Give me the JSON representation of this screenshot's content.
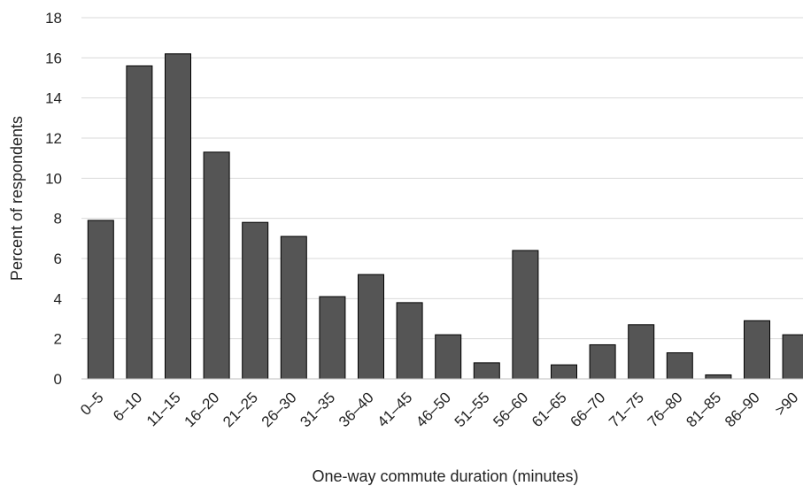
{
  "chart_data": {
    "type": "bar",
    "title": "",
    "xlabel": "One-way commute duration (minutes)",
    "ylabel": "Percent of respondents",
    "ylim": [
      0,
      18
    ],
    "yticks": [
      0,
      2,
      4,
      6,
      8,
      10,
      12,
      14,
      16,
      18
    ],
    "grid": true,
    "bar_color": "#555555",
    "categories": [
      "0–5",
      "6–10",
      "11–15",
      "16–20",
      "21–25",
      "26–30",
      "31–35",
      "36–40",
      "41–45",
      "46–50",
      "51–55",
      "56–60",
      "61–65",
      "66–70",
      "71–75",
      "76–80",
      "81–85",
      "86–90",
      ">90"
    ],
    "values": [
      7.9,
      15.6,
      16.2,
      11.3,
      7.8,
      7.1,
      4.1,
      5.2,
      3.8,
      2.2,
      0.8,
      6.4,
      0.7,
      1.7,
      2.7,
      1.3,
      0.2,
      2.9,
      2.2
    ]
  }
}
